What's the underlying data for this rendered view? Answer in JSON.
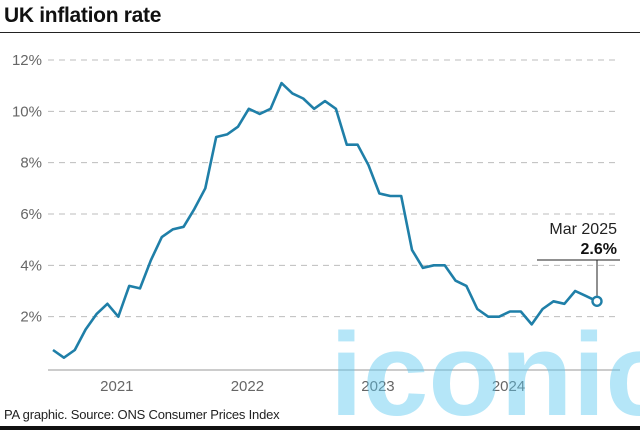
{
  "title": "UK inflation rate",
  "source": "PA graphic. Source: ONS Consumer Prices Index",
  "watermark": "iconic",
  "chart_data": {
    "type": "line",
    "title": "UK inflation rate",
    "xlabel": "",
    "ylabel": "",
    "ylim": [
      0,
      12
    ],
    "yticks": [
      2,
      4,
      6,
      8,
      10,
      12
    ],
    "ytick_labels": [
      "2%",
      "4%",
      "6%",
      "8%",
      "10%",
      "12%"
    ],
    "xtick_labels": [
      "2021",
      "2022",
      "2023",
      "2024"
    ],
    "grid": true,
    "line_color": "#1f7fa8",
    "start": "Jan 2021",
    "end": "Mar 2025",
    "values": [
      0.7,
      0.4,
      0.7,
      1.5,
      2.1,
      2.5,
      2.0,
      3.2,
      3.1,
      4.2,
      5.1,
      5.4,
      5.5,
      6.2,
      7.0,
      9.0,
      9.1,
      9.4,
      10.1,
      9.9,
      10.1,
      11.1,
      10.7,
      10.5,
      10.1,
      10.4,
      10.1,
      8.7,
      8.7,
      7.9,
      6.8,
      6.7,
      6.7,
      4.6,
      3.9,
      4.0,
      4.0,
      3.4,
      3.2,
      2.3,
      2.0,
      2.0,
      2.2,
      2.2,
      1.7,
      2.3,
      2.6,
      2.5,
      3.0,
      2.8,
      2.6
    ],
    "annotation": {
      "label": "Mar 2025",
      "value": "2.6%"
    }
  }
}
